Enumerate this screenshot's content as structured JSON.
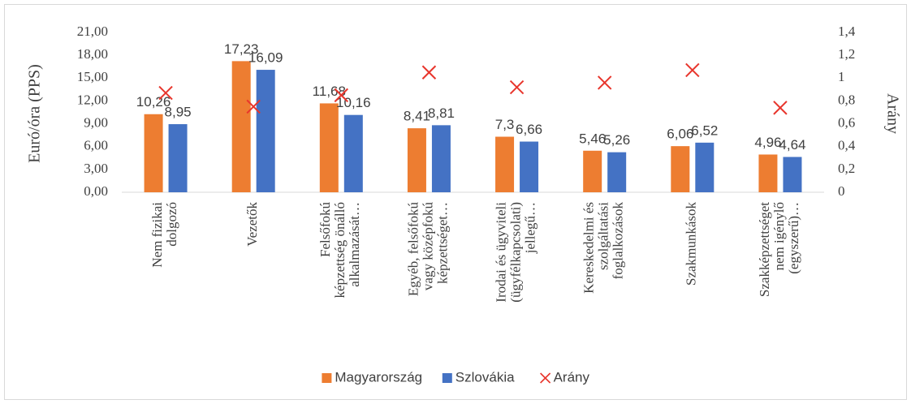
{
  "chart_data": {
    "type": "bar",
    "y_label": "Euró/óra (PPS)",
    "y2_label": "Arány",
    "categories": [
      [
        "Nem fizikai",
        "dolgozó"
      ],
      [
        "Vezetők"
      ],
      [
        "Felsőfokú",
        "képzettség önálló",
        "alkalmazását…"
      ],
      [
        "Egyéb, felsőfokú",
        "vagy középfokú",
        "képzettséget…"
      ],
      [
        "Irodai és ügyviteli",
        "(ügyfélkapcsolati)",
        "jellegű…"
      ],
      [
        "Kereskedelmi és",
        "szolgáltatási",
        "foglalkozások"
      ],
      [
        "Szakmunkások"
      ],
      [
        "Szakképzettséget",
        "nem igénylő",
        "(egyszerű)…"
      ]
    ],
    "series": [
      {
        "name": "Magyarország",
        "color": "#ed7d31",
        "kind": "bar",
        "values": [
          10.26,
          17.23,
          11.68,
          8.41,
          7.3,
          5.46,
          6.06,
          4.96
        ],
        "value_labels": [
          "10,26",
          "17,23",
          "11,68",
          "8,41",
          "7,3",
          "5,46",
          "6,06",
          "4,96"
        ]
      },
      {
        "name": "Szlovákia",
        "color": "#4472c4",
        "kind": "bar",
        "values": [
          8.95,
          16.09,
          10.16,
          8.81,
          6.66,
          5.26,
          6.52,
          4.64
        ],
        "value_labels": [
          "8,95",
          "16,09",
          "10,16",
          "8,81",
          "6,66",
          "5,26",
          "6,52",
          "4,64"
        ]
      },
      {
        "name": "Arány",
        "color": "#e8352c",
        "kind": "marker",
        "axis": "y2",
        "values": [
          0.87,
          0.75,
          0.85,
          1.05,
          0.92,
          0.96,
          1.07,
          0.74
        ]
      }
    ],
    "ylim": [
      0,
      21
    ],
    "yticks": [
      {
        "value": 0,
        "label": "0,00"
      },
      {
        "value": 3,
        "label": "3,00"
      },
      {
        "value": 6,
        "label": "6,00"
      },
      {
        "value": 9,
        "label": "9,00"
      },
      {
        "value": 12,
        "label": "12,00"
      },
      {
        "value": 15,
        "label": "15,00"
      },
      {
        "value": 18,
        "label": "18,00"
      },
      {
        "value": 21,
        "label": "21,00"
      }
    ],
    "y2lim": [
      0,
      1.4
    ],
    "y2ticks": [
      0,
      {
        "value": 0.2,
        "label": "0,2"
      },
      {
        "value": 0.4,
        "label": "0,4"
      },
      {
        "value": 0.6,
        "label": "0,6"
      },
      {
        "value": 0.8,
        "label": "0,8"
      },
      1,
      {
        "value": 1.2,
        "label": "1,2"
      },
      {
        "value": 1.4,
        "label": "1,4"
      }
    ],
    "grid": false,
    "legend": "bottom"
  }
}
